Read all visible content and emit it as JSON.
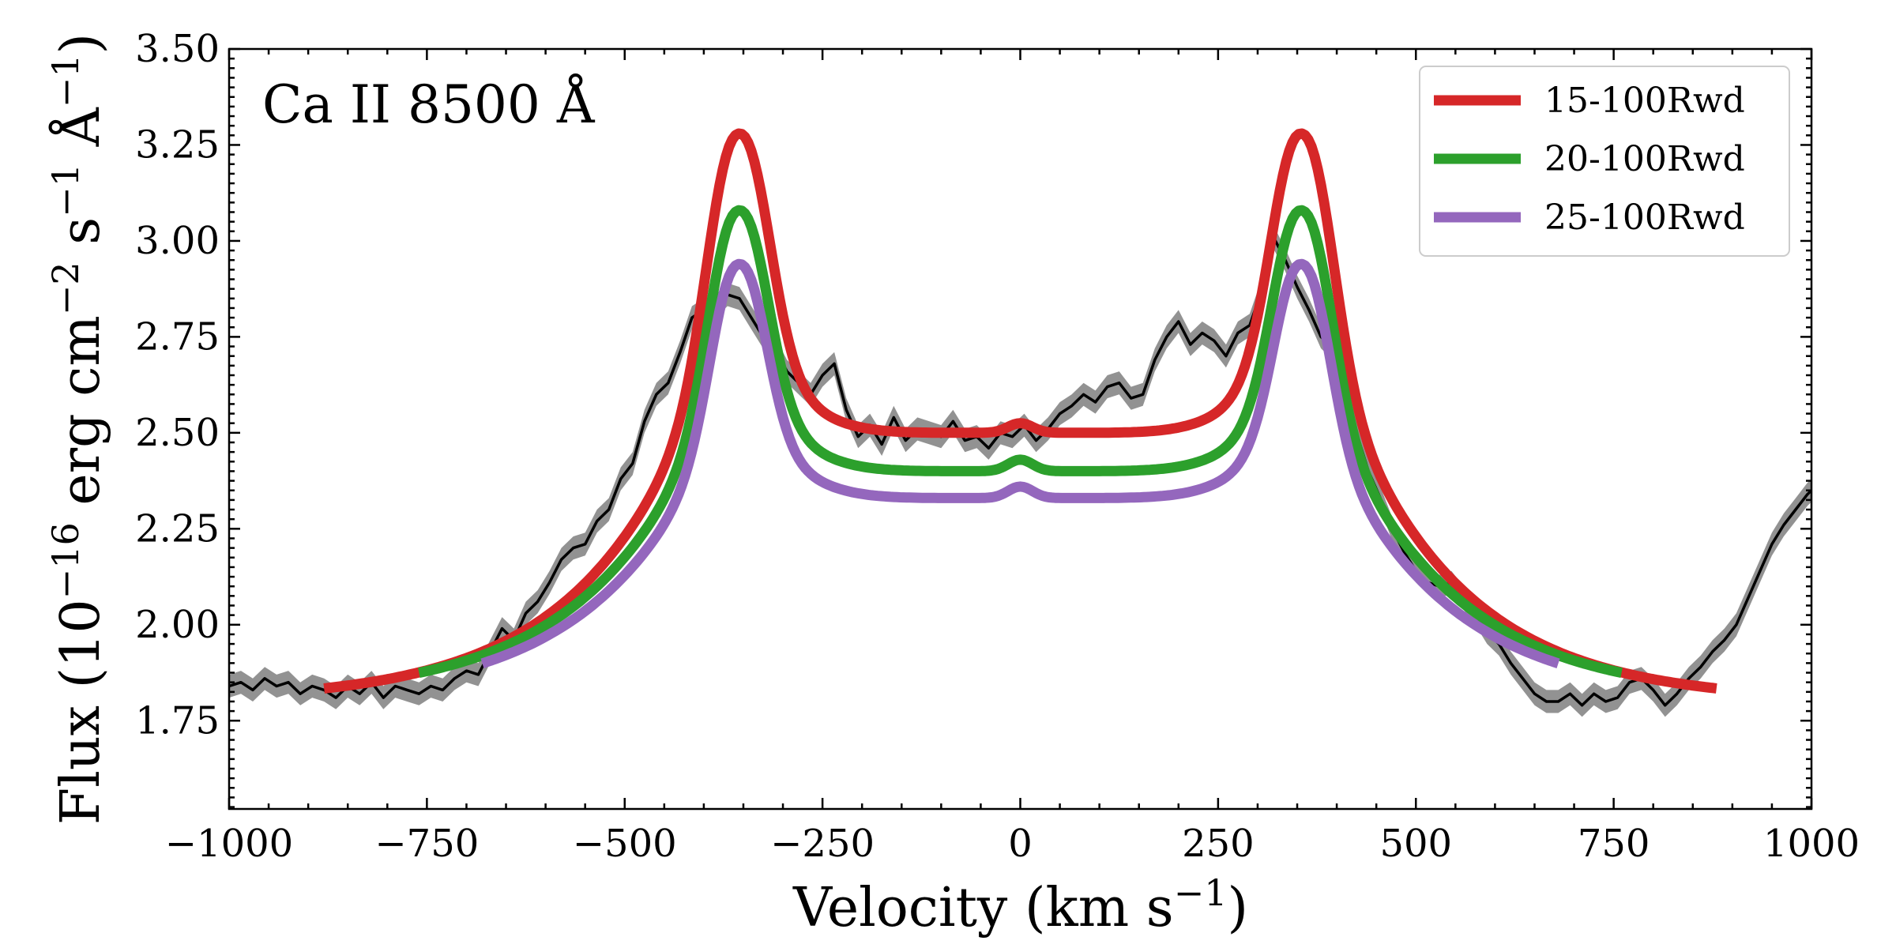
{
  "chart_data": {
    "type": "line",
    "title": "",
    "annotation": "Ca II 8500 Å",
    "xlabel": "Velocity (km s",
    "xlabel_sup": "−1",
    "xlabel_end": ")",
    "ylabel": {
      "pre": "Flux (10",
      "sup1": "−16",
      "mid1": " erg cm",
      "sup2": "−2",
      "mid2": " s",
      "sup3": "−1",
      "mid3": " Å",
      "sup4": "−1",
      "end": ")"
    },
    "xlim": [
      -1000,
      1000
    ],
    "ylim": [
      1.52,
      3.5
    ],
    "xticks": [
      -1000,
      -750,
      -500,
      -250,
      0,
      250,
      500,
      750,
      1000
    ],
    "xtick_labels": [
      "−1000",
      "−750",
      "−500",
      "−250",
      "0",
      "250",
      "500",
      "750",
      "1000"
    ],
    "yticks": [
      1.75,
      2.0,
      2.25,
      2.5,
      2.75,
      3.0,
      3.25,
      3.5
    ],
    "ytick_labels": [
      "1.75",
      "2.00",
      "2.25",
      "2.50",
      "2.75",
      "3.00",
      "3.25",
      "3.50"
    ],
    "legend_position": "top-right",
    "observed": {
      "name": "observed",
      "color": "#000000",
      "band_color": "#7f7f7f",
      "uncertainty": 0.03,
      "x": [
        -1000,
        -985,
        -970,
        -955,
        -940,
        -925,
        -910,
        -895,
        -880,
        -865,
        -850,
        -835,
        -820,
        -805,
        -790,
        -775,
        -760,
        -745,
        -730,
        -715,
        -700,
        -685,
        -670,
        -655,
        -640,
        -625,
        -610,
        -595,
        -580,
        -565,
        -550,
        -535,
        -520,
        -505,
        -490,
        -475,
        -460,
        -445,
        -430,
        -415,
        -400,
        -385,
        -370,
        -355,
        -340,
        -325,
        -310,
        -295,
        -280,
        -265,
        -250,
        -235,
        -220,
        -205,
        -190,
        -175,
        -160,
        -145,
        -130,
        -115,
        -100,
        -85,
        -70,
        -55,
        -40,
        -25,
        -10,
        5,
        20,
        35,
        50,
        65,
        80,
        95,
        110,
        125,
        140,
        155,
        170,
        185,
        200,
        215,
        230,
        245,
        260,
        275,
        290,
        305,
        320,
        335,
        350,
        365,
        380,
        395,
        410,
        425,
        440,
        455,
        470,
        485,
        500,
        515,
        530,
        545,
        560,
        575,
        590,
        605,
        620,
        635,
        650,
        665,
        680,
        695,
        710,
        725,
        740,
        755,
        770,
        785,
        800,
        815,
        830,
        845,
        860,
        875,
        890,
        905,
        920,
        935,
        950,
        965,
        980,
        995,
        1000
      ],
      "y": [
        1.84,
        1.85,
        1.83,
        1.86,
        1.84,
        1.85,
        1.82,
        1.84,
        1.83,
        1.81,
        1.84,
        1.82,
        1.85,
        1.81,
        1.84,
        1.83,
        1.82,
        1.84,
        1.83,
        1.86,
        1.88,
        1.87,
        1.93,
        1.99,
        1.96,
        2.03,
        2.06,
        2.11,
        2.17,
        2.2,
        2.21,
        2.27,
        2.3,
        2.38,
        2.42,
        2.53,
        2.6,
        2.63,
        2.71,
        2.8,
        2.82,
        2.83,
        2.86,
        2.85,
        2.8,
        2.75,
        2.72,
        2.66,
        2.63,
        2.6,
        2.65,
        2.68,
        2.56,
        2.49,
        2.52,
        2.47,
        2.54,
        2.48,
        2.51,
        2.5,
        2.49,
        2.53,
        2.48,
        2.49,
        2.46,
        2.5,
        2.49,
        2.52,
        2.48,
        2.51,
        2.55,
        2.57,
        2.6,
        2.58,
        2.62,
        2.63,
        2.59,
        2.6,
        2.69,
        2.75,
        2.79,
        2.73,
        2.76,
        2.74,
        2.7,
        2.76,
        2.78,
        2.87,
        3.01,
        2.95,
        2.88,
        2.82,
        2.75,
        2.72,
        2.62,
        2.5,
        2.4,
        2.33,
        2.25,
        2.19,
        2.14,
        2.11,
        2.1,
        2.11,
        2.07,
        2.03,
        1.98,
        1.95,
        1.9,
        1.86,
        1.82,
        1.8,
        1.8,
        1.82,
        1.79,
        1.82,
        1.8,
        1.81,
        1.85,
        1.86,
        1.83,
        1.79,
        1.82,
        1.86,
        1.89,
        1.93,
        1.96,
        2.0,
        2.07,
        2.14,
        2.21,
        2.26,
        2.3,
        2.34,
        2.35
      ]
    },
    "series": [
      {
        "name": "15-100Rwd",
        "color": "#d62728",
        "xmin": -880,
        "xmax": 880,
        "peak_x": 355,
        "peak_w": 46,
        "inner": 2.5,
        "edge": 1.8,
        "peak": 3.28,
        "dip": 0.025
      },
      {
        "name": "20-100Rwd",
        "color": "#2ca02c",
        "xmin": -760,
        "xmax": 760,
        "peak_x": 355,
        "peak_w": 44,
        "inner": 2.4,
        "edge": 1.81,
        "peak": 3.08,
        "dip": 0.03
      },
      {
        "name": "25-100Rwd",
        "color": "#9467bd",
        "xmin": -680,
        "xmax": 680,
        "peak_x": 355,
        "peak_w": 42,
        "inner": 2.33,
        "edge": 1.8,
        "peak": 2.94,
        "dip": 0.03
      }
    ]
  }
}
